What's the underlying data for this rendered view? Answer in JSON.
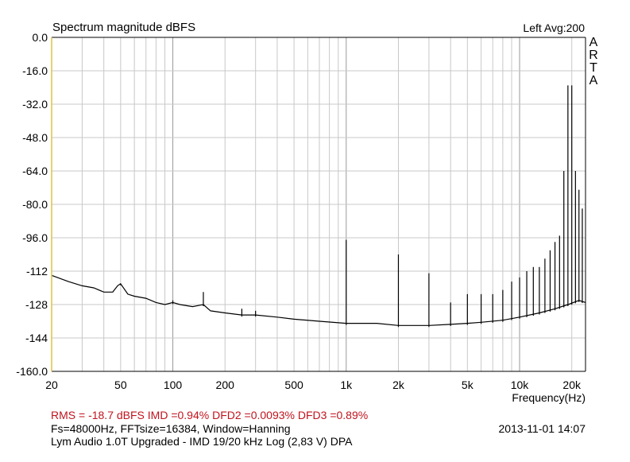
{
  "colors": {
    "background": "#ffffff",
    "grid": "#c8c8c8",
    "axis": "#000000",
    "trace": "#000000",
    "metrics_text": "#c0141e",
    "left_axis_line": "#e0c040"
  },
  "header": {
    "title": "Spectrum magnitude dBFS",
    "channel_info": "Left  Avg:200",
    "logo": [
      "A",
      "R",
      "T",
      "A"
    ]
  },
  "footer": {
    "metrics": "RMS =  -18.7 dBFS   IMD =0.94%  DFD2 =0.0093%  DFD3 =0.89%",
    "settings": "Fs=48000Hz, FFTsize=16384, Window=Hanning",
    "datetime": "2013-11-01  14:07",
    "device": "Lym Audio 1.0T Upgraded - IMD 19/20 kHz Log (2,83 V)     DPA"
  },
  "chart_data": {
    "type": "line",
    "title": "Spectrum magnitude dBFS",
    "xlabel": "Frequency(Hz)",
    "ylabel": "",
    "xscale": "log",
    "xlim": [
      20,
      24000
    ],
    "ylim": [
      -160,
      0
    ],
    "y_ticks": [
      "0.0",
      "-16.0",
      "-32.0",
      "-48.0",
      "-64.0",
      "-80.0",
      "-96.0",
      "-112",
      "-128",
      "-144",
      "-160.0"
    ],
    "y_tick_values": [
      0,
      -16,
      -32,
      -48,
      -64,
      -80,
      -96,
      -112,
      -128,
      -144,
      -160
    ],
    "x_ticks": [
      "20",
      "50",
      "100",
      "200",
      "500",
      "1k",
      "2k",
      "5k",
      "10k",
      "20k"
    ],
    "x_tick_values": [
      20,
      50,
      100,
      200,
      500,
      1000,
      2000,
      5000,
      10000,
      20000
    ],
    "grid": true,
    "series": [
      {
        "noise_floor": [
          [
            20,
            -114
          ],
          [
            25,
            -117
          ],
          [
            30,
            -119
          ],
          [
            35,
            -120
          ],
          [
            40,
            -122
          ],
          [
            45,
            -122
          ],
          [
            48,
            -119
          ],
          [
            50,
            -118
          ],
          [
            55,
            -123
          ],
          [
            60,
            -124
          ],
          [
            70,
            -125
          ],
          [
            80,
            -127
          ],
          [
            90,
            -128
          ],
          [
            100,
            -127
          ],
          [
            110,
            -128
          ],
          [
            130,
            -129
          ],
          [
            150,
            -128
          ],
          [
            165,
            -131
          ],
          [
            200,
            -132
          ],
          [
            250,
            -133
          ],
          [
            300,
            -133
          ],
          [
            400,
            -134
          ],
          [
            500,
            -135
          ],
          [
            700,
            -136
          ],
          [
            1000,
            -137
          ],
          [
            1500,
            -137
          ],
          [
            2000,
            -138
          ],
          [
            3000,
            -138
          ],
          [
            4000,
            -137.5
          ],
          [
            5000,
            -137
          ],
          [
            6000,
            -136.5
          ],
          [
            8000,
            -135.5
          ],
          [
            10000,
            -134
          ],
          [
            13000,
            -132
          ],
          [
            16000,
            -130
          ],
          [
            19000,
            -128
          ],
          [
            22000,
            -126
          ],
          [
            24000,
            -127
          ]
        ],
        "peaks": [
          [
            50,
            -118
          ],
          [
            100,
            -126
          ],
          [
            150,
            -122
          ],
          [
            250,
            -130
          ],
          [
            300,
            -131
          ],
          [
            1000,
            -97
          ],
          [
            2000,
            -104
          ],
          [
            3000,
            -113
          ],
          [
            4000,
            -127
          ],
          [
            5000,
            -123
          ],
          [
            6000,
            -123
          ],
          [
            7000,
            -123
          ],
          [
            8000,
            -121
          ],
          [
            9000,
            -117
          ],
          [
            10000,
            -115
          ],
          [
            11000,
            -112
          ],
          [
            12000,
            -110
          ],
          [
            13000,
            -110
          ],
          [
            14000,
            -106
          ],
          [
            15000,
            -102
          ],
          [
            16000,
            -98
          ],
          [
            17000,
            -95
          ],
          [
            18000,
            -64
          ],
          [
            19000,
            -23
          ],
          [
            20000,
            -23
          ],
          [
            21000,
            -64
          ],
          [
            22000,
            -73
          ],
          [
            23000,
            -82
          ]
        ]
      }
    ]
  }
}
